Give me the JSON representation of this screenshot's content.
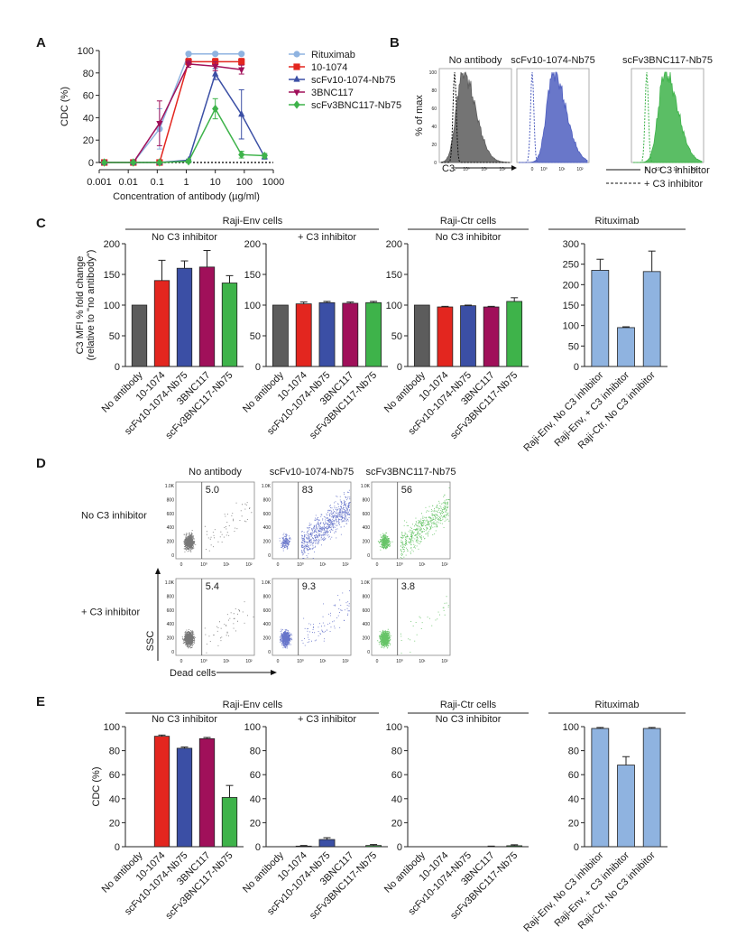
{
  "panel_labels": {
    "a": "A",
    "b": "B",
    "c": "C",
    "d": "D",
    "e": "E"
  },
  "palette": {
    "rituximab": "#8fb3e0",
    "c10_1074": "#e3261f",
    "scfv10": "#3b4fa5",
    "c3bnc": "#a0105a",
    "scfv3b": "#3eb34a",
    "noab": "#5c5c5c",
    "flow_black": "#4a4a4a",
    "flow_blue": "#3447b8",
    "flow_green": "#33b034"
  },
  "chart_data": [
    {
      "id": "A",
      "type": "line",
      "title": "",
      "xlabel": "Concentration of antibody (µg/ml)",
      "ylabel": "CDC (%)",
      "xscale": "log",
      "xlim": [
        0.001,
        1000
      ],
      "ylim": [
        0,
        100
      ],
      "x_tick_labels": [
        "0.001",
        "0.01",
        "0.1",
        "1",
        "10",
        "100",
        "1000"
      ],
      "y_tick_labels": [
        "0",
        "20",
        "40",
        "60",
        "80",
        "100"
      ],
      "baseline": "dotted line at 0",
      "legend_position": "right",
      "series": [
        {
          "name": "Rituximab",
          "marker": "circle",
          "color": "#8fb3e0",
          "x": [
            0.0015,
            0.015,
            0.12,
            1.2,
            10,
            80
          ],
          "y": [
            0,
            0,
            30,
            97,
            97,
            97
          ],
          "err": [
            0,
            0,
            18,
            0,
            0,
            0
          ]
        },
        {
          "name": "10-1074",
          "marker": "square",
          "color": "#e3261f",
          "x": [
            0.0015,
            0.015,
            0.12,
            1.2,
            10,
            80
          ],
          "y": [
            0,
            0,
            0,
            90,
            90,
            90
          ],
          "err": [
            0,
            0,
            0,
            3,
            3,
            3
          ]
        },
        {
          "name": "scFv10-1074-Nb75",
          "marker": "triangle-up",
          "color": "#3b4fa5",
          "x": [
            0.0015,
            0.015,
            0.12,
            1.2,
            10,
            80,
            500
          ],
          "y": [
            0,
            0,
            0,
            2,
            79,
            43,
            5
          ],
          "err": [
            0,
            0,
            0,
            1,
            5,
            22,
            2
          ]
        },
        {
          "name": "3BNC117",
          "marker": "triangle-down",
          "color": "#a0105a",
          "x": [
            0.0015,
            0.015,
            0.12,
            1.2,
            10,
            80
          ],
          "y": [
            0,
            0,
            35,
            88,
            86,
            83
          ],
          "err": [
            0,
            0,
            20,
            3,
            4,
            4
          ]
        },
        {
          "name": "scFv3BNC117-Nb75",
          "marker": "diamond",
          "color": "#3eb34a",
          "x": [
            0.0015,
            0.015,
            0.12,
            1.2,
            10,
            80,
            500
          ],
          "y": [
            0,
            0,
            0,
            1,
            48,
            7,
            6
          ],
          "err": [
            0,
            0,
            0,
            1,
            9,
            3,
            2
          ]
        }
      ]
    },
    {
      "id": "B",
      "type": "area",
      "ylabel": "% of max",
      "xlabel": "C3",
      "x_tick_labels": [
        "0",
        "10⁰",
        "10¹",
        "10²"
      ],
      "y_tick_labels": [
        "0",
        "20",
        "40",
        "60",
        "80",
        "100"
      ],
      "panels": [
        {
          "title": "No antibody",
          "color": "#5c5c5c",
          "peak_log": -0.1
        },
        {
          "title": "scFv10-1074-Nb75",
          "color": "#4f5fc0",
          "peak_log": 0.6
        },
        {
          "title": "scFv3BNC117-Nb75",
          "color": "#3eb34a",
          "peak_log": 0.45
        }
      ],
      "legend": [
        "No C3 inhibitor",
        "+ C3 inhibitor"
      ]
    },
    {
      "id": "C",
      "type": "bar",
      "ylabel": "C3 MFI % fold change",
      "ylabel2": "(relative to \"no antibody\")",
      "groups": [
        {
          "header": "Raji-Env cells",
          "sub": "No C3 inhibitor",
          "ylim": [
            0,
            200
          ],
          "y_tick_labels": [
            "0",
            "50",
            "100",
            "150",
            "200"
          ],
          "categories": [
            "No antibody",
            "10-1074",
            "scFv10-1074-Nb75",
            "3BNC117",
            "scFv3BNC117-Nb75"
          ],
          "values": [
            100,
            140,
            160,
            162,
            136
          ],
          "errors": [
            0,
            33,
            12,
            27,
            12
          ],
          "colors": [
            "#5c5c5c",
            "#e3261f",
            "#3b4fa5",
            "#a0105a",
            "#3eb34a"
          ]
        },
        {
          "header": "",
          "sub": "+ C3 inhibitor",
          "ylim": [
            0,
            200
          ],
          "y_tick_labels": [
            "0",
            "50",
            "100",
            "150",
            "200"
          ],
          "categories": [
            "No antibody",
            "10-1074",
            "scFv10-1074-Nb75",
            "3BNC117",
            "scFv3BNC117-Nb75"
          ],
          "values": [
            100,
            102,
            104,
            103,
            104
          ],
          "errors": [
            0,
            3,
            2,
            2,
            2
          ],
          "colors": [
            "#5c5c5c",
            "#e3261f",
            "#3b4fa5",
            "#a0105a",
            "#3eb34a"
          ]
        },
        {
          "header": "Raji-Ctr cells",
          "sub": "No C3 inhibitor",
          "ylim": [
            0,
            200
          ],
          "y_tick_labels": [
            "0",
            "50",
            "100",
            "150",
            "200"
          ],
          "categories": [
            "No antibody",
            "10-1074",
            "scFv10-1074-Nb75",
            "3BNC117",
            "scFv3BNC117-Nb75"
          ],
          "values": [
            100,
            97,
            99,
            97,
            106
          ],
          "errors": [
            0,
            1,
            1,
            1,
            6
          ],
          "colors": [
            "#5c5c5c",
            "#e3261f",
            "#3b4fa5",
            "#a0105a",
            "#3eb34a"
          ]
        },
        {
          "header": "Rituximab",
          "sub": "",
          "ylim": [
            0,
            300
          ],
          "y_tick_labels": [
            "0",
            "50",
            "100",
            "150",
            "200",
            "250",
            "300"
          ],
          "categories": [
            "Raji-Env, No C3 inhibitor",
            "Raji-Env, + C3 inhibitor",
            "Raji-Ctr, No C3 inhibitor"
          ],
          "values": [
            235,
            95,
            232
          ],
          "errors": [
            27,
            2,
            50
          ],
          "colors": [
            "#8fb3e0",
            "#8fb3e0",
            "#8fb3e0"
          ]
        }
      ]
    },
    {
      "id": "D",
      "type": "scatter",
      "xlabel": "Dead cells",
      "ylabel": "SSC",
      "columns": [
        "No antibody",
        "scFv10-1074-Nb75",
        "scFv3BNC117-Nb75"
      ],
      "rows": [
        "No C3 inhibitor",
        "+ C3 inhibitor"
      ],
      "gate_percent": [
        [
          "5.0",
          "83",
          "56"
        ],
        [
          "5.4",
          "9.3",
          "3.8"
        ]
      ],
      "y_tick_labels": [
        "0",
        "200",
        "400",
        "600",
        "800",
        "1.0K"
      ],
      "x_tick_labels": [
        "0",
        "10⁰",
        "10¹",
        "10²"
      ]
    },
    {
      "id": "E",
      "type": "bar",
      "ylabel": "CDC (%)",
      "groups": [
        {
          "header": "Raji-Env cells",
          "sub": "No C3 inhibitor",
          "ylim": [
            0,
            100
          ],
          "y_tick_labels": [
            "0",
            "20",
            "40",
            "60",
            "80",
            "100"
          ],
          "categories": [
            "No antibody",
            "10-1074",
            "scFv10-1074-Nb75",
            "3BNC117",
            "scFv3BNC117-Nb75"
          ],
          "values": [
            0,
            92,
            82,
            90,
            41
          ],
          "errors": [
            0,
            1,
            1,
            1,
            10
          ],
          "colors": [
            "#5c5c5c",
            "#e3261f",
            "#3b4fa5",
            "#a0105a",
            "#3eb34a"
          ]
        },
        {
          "header": "",
          "sub": "+ C3 inhibitor",
          "ylim": [
            0,
            100
          ],
          "y_tick_labels": [
            "0",
            "20",
            "40",
            "60",
            "80",
            "100"
          ],
          "categories": [
            "No antibody",
            "10-1074",
            "scFv10-1074-Nb75",
            "3BNC117",
            "scFv3BNC117-Nb75"
          ],
          "values": [
            0,
            0.5,
            6,
            0,
            1
          ],
          "errors": [
            0,
            0.5,
            1.5,
            0,
            0.8
          ],
          "colors": [
            "#5c5c5c",
            "#e3261f",
            "#3b4fa5",
            "#a0105a",
            "#3eb34a"
          ]
        },
        {
          "header": "Raji-Ctr cells",
          "sub": "No C3 inhibitor",
          "ylim": [
            0,
            100
          ],
          "y_tick_labels": [
            "0",
            "20",
            "40",
            "60",
            "80",
            "100"
          ],
          "categories": [
            "No antibody",
            "10-1074",
            "scFv10-1074-Nb75",
            "3BNC117",
            "scFv3BNC117-Nb75"
          ],
          "values": [
            0,
            0,
            0,
            0,
            0.8
          ],
          "errors": [
            0,
            0,
            0,
            0.5,
            0.8
          ],
          "colors": [
            "#5c5c5c",
            "#e3261f",
            "#3b4fa5",
            "#a0105a",
            "#3eb34a"
          ]
        },
        {
          "header": "Rituximab",
          "sub": "",
          "ylim": [
            0,
            100
          ],
          "y_tick_labels": [
            "0",
            "20",
            "40",
            "60",
            "80",
            "100"
          ],
          "categories": [
            "Raji-Env, No C3 inhibitor",
            "Raji-Env, + C3 inhibitor",
            "Raji-Ctr, No C3 inhibitor"
          ],
          "values": [
            98.5,
            68,
            98.5
          ],
          "errors": [
            0.8,
            7,
            0.8
          ],
          "colors": [
            "#8fb3e0",
            "#8fb3e0",
            "#8fb3e0"
          ]
        }
      ]
    }
  ]
}
